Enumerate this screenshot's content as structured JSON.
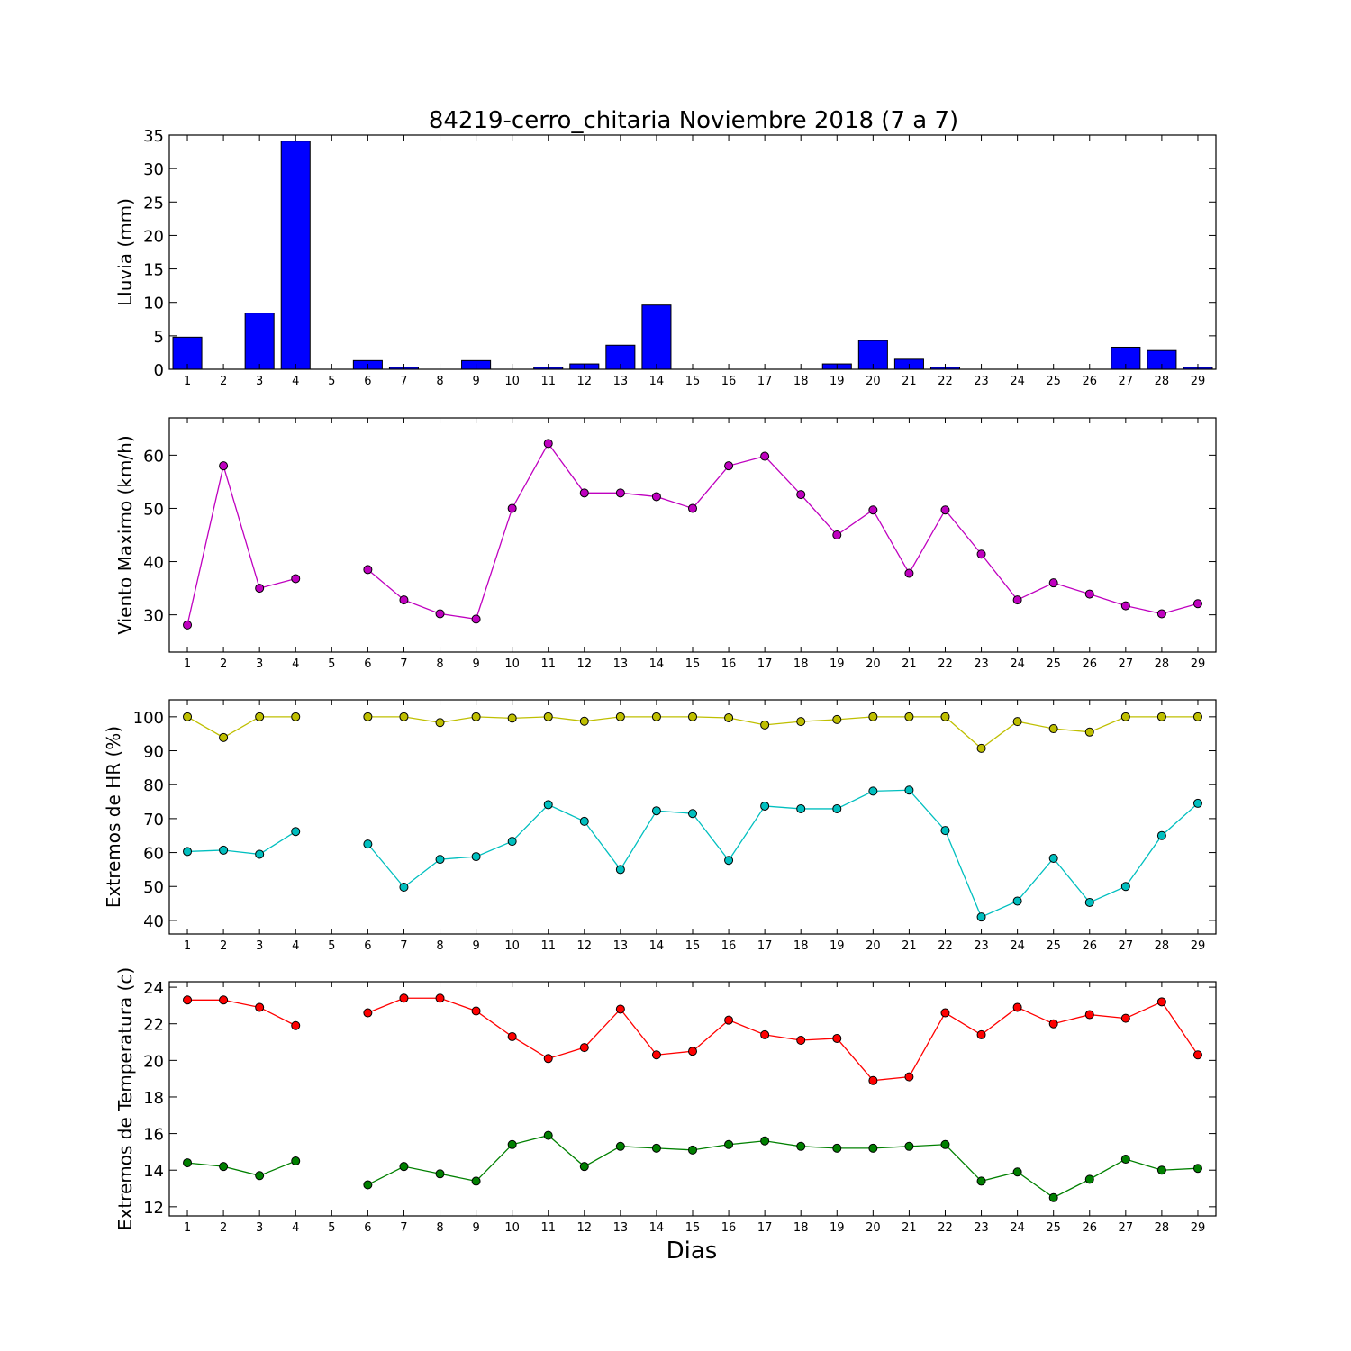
{
  "title": "84219-cerro_chitaria Noviembre 2018  (7 a 7)",
  "xlabel": "Dias",
  "colors": {
    "rain": "#0000ff",
    "wind": "#bf00bf",
    "hr_max": "#bfbf00",
    "hr_min": "#00bfbf",
    "temp_max": "#ff0000",
    "temp_min": "#008000"
  },
  "chart_data": [
    {
      "type": "bar",
      "ylabel": "Lluvia (mm)",
      "x": [
        1,
        2,
        3,
        4,
        5,
        6,
        7,
        8,
        9,
        10,
        11,
        12,
        13,
        14,
        15,
        16,
        17,
        18,
        19,
        20,
        21,
        22,
        23,
        24,
        25,
        26,
        27,
        28,
        29
      ],
      "values": [
        4.8,
        0,
        8.4,
        34.1,
        0,
        1.3,
        0.3,
        0,
        1.3,
        0,
        0.3,
        0.8,
        3.6,
        9.6,
        0,
        0,
        0,
        0,
        0.8,
        4.3,
        1.5,
        0.3,
        0,
        0,
        0,
        0,
        3.3,
        2.8,
        0.3
      ],
      "ylim": [
        0,
        35
      ],
      "yticks": [
        0,
        5,
        10,
        15,
        20,
        25,
        30,
        35
      ]
    },
    {
      "type": "line",
      "ylabel": "Viento Maximo (km/h)",
      "x": [
        1,
        2,
        3,
        4,
        5,
        6,
        7,
        8,
        9,
        10,
        11,
        12,
        13,
        14,
        15,
        16,
        17,
        18,
        19,
        20,
        21,
        22,
        23,
        24,
        25,
        26,
        27,
        28,
        29
      ],
      "series": [
        {
          "values": [
            28.1,
            58,
            35,
            36.8,
            null,
            38.5,
            32.8,
            30.2,
            29.2,
            50,
            62.2,
            52.9,
            52.9,
            52.2,
            50,
            58,
            59.8,
            52.6,
            45,
            49.7,
            37.8,
            49.7,
            41.4,
            32.8,
            36,
            33.9,
            31.7,
            30.2,
            32.1
          ]
        }
      ],
      "ylim": [
        23,
        67
      ],
      "yticks": [
        30,
        40,
        50,
        60
      ]
    },
    {
      "type": "line",
      "ylabel": "Extremos de HR (%)",
      "x": [
        1,
        2,
        3,
        4,
        5,
        6,
        7,
        8,
        9,
        10,
        11,
        12,
        13,
        14,
        15,
        16,
        17,
        18,
        19,
        20,
        21,
        22,
        23,
        24,
        25,
        26,
        27,
        28,
        29
      ],
      "series": [
        {
          "values": [
            100,
            93.9,
            100,
            100,
            null,
            100,
            100,
            98.3,
            100,
            99.6,
            100,
            98.7,
            100,
            100,
            100,
            99.7,
            97.6,
            98.6,
            99.2,
            100,
            100,
            100,
            90.7,
            98.6,
            96.5,
            95.5,
            100,
            100,
            100
          ]
        },
        {
          "values": [
            60.3,
            60.7,
            59.5,
            66.2,
            null,
            62.5,
            49.8,
            58,
            58.8,
            63.3,
            74.1,
            69.2,
            55,
            72.3,
            71.5,
            57.7,
            73.7,
            72.9,
            72.9,
            78.1,
            78.4,
            66.5,
            41,
            45.7,
            58.3,
            45.3,
            50,
            65,
            74.5
          ]
        }
      ],
      "ylim": [
        36,
        105
      ],
      "yticks": [
        40,
        50,
        60,
        70,
        80,
        90,
        100
      ]
    },
    {
      "type": "line",
      "ylabel": "Extremos de Temperatura (c)",
      "x": [
        1,
        2,
        3,
        4,
        5,
        6,
        7,
        8,
        9,
        10,
        11,
        12,
        13,
        14,
        15,
        16,
        17,
        18,
        19,
        20,
        21,
        22,
        23,
        24,
        25,
        26,
        27,
        28,
        29
      ],
      "series": [
        {
          "values": [
            23.3,
            23.3,
            22.9,
            21.9,
            null,
            22.6,
            23.4,
            23.4,
            22.7,
            21.3,
            20.1,
            20.7,
            22.8,
            20.3,
            20.5,
            22.2,
            21.4,
            21.1,
            21.2,
            18.9,
            19.1,
            22.6,
            21.4,
            22.9,
            22,
            22.5,
            22.3,
            23.2,
            20.3
          ]
        },
        {
          "values": [
            14.4,
            14.2,
            13.7,
            14.5,
            null,
            13.2,
            14.2,
            13.8,
            13.4,
            15.4,
            15.9,
            14.2,
            15.3,
            15.2,
            15.1,
            15.4,
            15.6,
            15.3,
            15.2,
            15.2,
            15.3,
            15.4,
            13.4,
            13.9,
            12.5,
            13.5,
            14.6,
            14,
            14.1
          ]
        }
      ],
      "ylim": [
        11.5,
        24.3
      ],
      "yticks": [
        12,
        14,
        16,
        18,
        20,
        22,
        24
      ]
    }
  ]
}
